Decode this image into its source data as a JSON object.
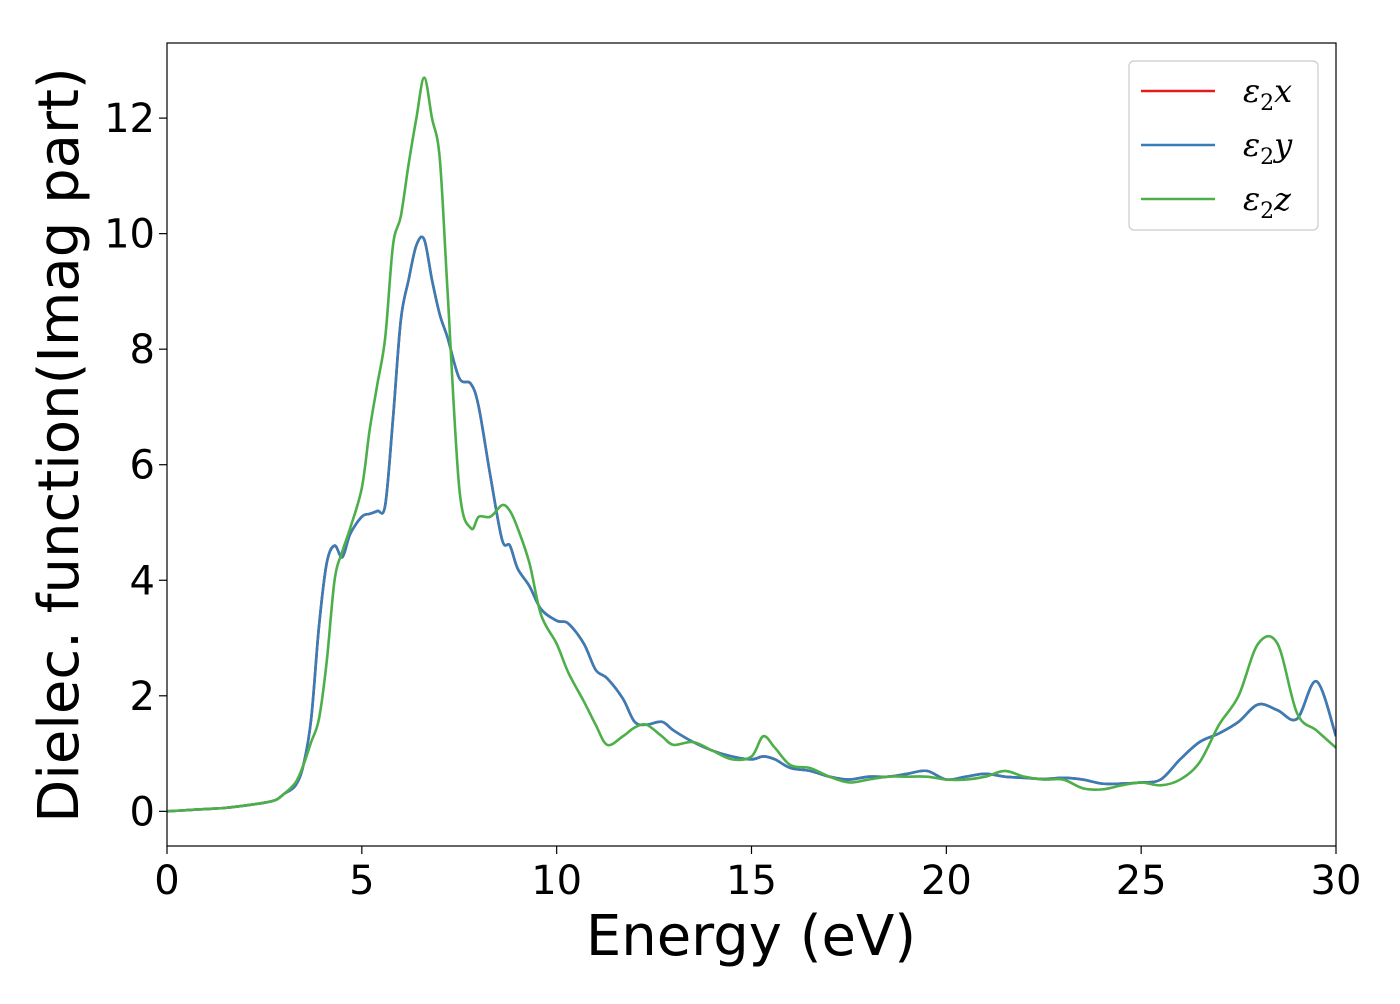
{
  "chart_data": {
    "type": "line",
    "title": "",
    "xlabel": "Energy (eV)",
    "ylabel": "Dielec. function(Imag part)",
    "xlim": [
      0,
      30
    ],
    "ylim": [
      -0.6,
      13.3
    ],
    "xticks": [
      0,
      5,
      10,
      15,
      20,
      25,
      30
    ],
    "yticks": [
      0,
      2,
      4,
      6,
      8,
      10,
      12
    ],
    "grid": false,
    "legend_position": "top-right",
    "legend": [
      {
        "sub": "2",
        "axis": "x",
        "color": "#e41a1c"
      },
      {
        "sub": "2",
        "axis": "y",
        "color": "#377eb8"
      },
      {
        "sub": "2",
        "axis": "z",
        "color": "#4daf4a"
      }
    ],
    "series": [
      {
        "name": "ε2x",
        "color": "#e41a1c",
        "x": [
          0,
          0.5,
          1,
          1.5,
          2,
          2.5,
          2.8,
          3,
          3.3,
          3.5,
          3.7,
          3.9,
          4.1,
          4.3,
          4.5,
          4.7,
          5,
          5.2,
          5.4,
          5.6,
          5.8,
          6,
          6.2,
          6.4,
          6.6,
          6.8,
          7,
          7.2,
          7.5,
          7.8,
          8,
          8.3,
          8.6,
          8.8,
          9,
          9.3,
          9.6,
          10,
          10.3,
          10.7,
          11,
          11.3,
          11.7,
          12,
          12.3,
          12.7,
          13,
          13.5,
          14,
          14.5,
          15,
          15.3,
          15.6,
          16,
          16.5,
          17,
          17.5,
          18,
          18.5,
          19,
          19.5,
          20,
          20.5,
          21,
          21.5,
          22,
          22.5,
          23,
          23.5,
          24,
          24.5,
          25,
          25.5,
          26,
          26.5,
          27,
          27.5,
          28,
          28.5,
          29,
          29.5,
          30
        ],
        "y": [
          0,
          0.02,
          0.04,
          0.06,
          0.1,
          0.15,
          0.2,
          0.3,
          0.45,
          0.8,
          1.6,
          3.2,
          4.3,
          4.6,
          4.4,
          4.8,
          5.1,
          5.15,
          5.2,
          5.3,
          6.8,
          8.5,
          9.2,
          9.8,
          9.9,
          9.2,
          8.6,
          8.2,
          7.5,
          7.4,
          7.0,
          5.8,
          4.7,
          4.6,
          4.2,
          3.9,
          3.5,
          3.3,
          3.25,
          2.9,
          2.45,
          2.3,
          1.95,
          1.55,
          1.5,
          1.55,
          1.4,
          1.2,
          1.05,
          0.95,
          0.9,
          0.95,
          0.9,
          0.75,
          0.7,
          0.6,
          0.55,
          0.6,
          0.6,
          0.65,
          0.7,
          0.55,
          0.6,
          0.65,
          0.6,
          0.58,
          0.56,
          0.58,
          0.55,
          0.48,
          0.48,
          0.5,
          0.55,
          0.9,
          1.2,
          1.35,
          1.55,
          1.85,
          1.75,
          1.6,
          2.25,
          1.3
        ]
      },
      {
        "name": "ε2y",
        "color": "#377eb8",
        "x": [
          0,
          0.5,
          1,
          1.5,
          2,
          2.5,
          2.8,
          3,
          3.3,
          3.5,
          3.7,
          3.9,
          4.1,
          4.3,
          4.5,
          4.7,
          5,
          5.2,
          5.4,
          5.6,
          5.8,
          6,
          6.2,
          6.4,
          6.6,
          6.8,
          7,
          7.2,
          7.5,
          7.8,
          8,
          8.3,
          8.6,
          8.8,
          9,
          9.3,
          9.6,
          10,
          10.3,
          10.7,
          11,
          11.3,
          11.7,
          12,
          12.3,
          12.7,
          13,
          13.5,
          14,
          14.5,
          15,
          15.3,
          15.6,
          16,
          16.5,
          17,
          17.5,
          18,
          18.5,
          19,
          19.5,
          20,
          20.5,
          21,
          21.5,
          22,
          22.5,
          23,
          23.5,
          24,
          24.5,
          25,
          25.5,
          26,
          26.5,
          27,
          27.5,
          28,
          28.5,
          29,
          29.5,
          30
        ],
        "y": [
          0,
          0.02,
          0.04,
          0.06,
          0.1,
          0.15,
          0.2,
          0.3,
          0.45,
          0.8,
          1.6,
          3.2,
          4.3,
          4.6,
          4.4,
          4.8,
          5.1,
          5.15,
          5.2,
          5.3,
          6.8,
          8.5,
          9.2,
          9.8,
          9.9,
          9.2,
          8.6,
          8.2,
          7.5,
          7.4,
          7.0,
          5.8,
          4.7,
          4.6,
          4.2,
          3.9,
          3.5,
          3.3,
          3.25,
          2.9,
          2.45,
          2.3,
          1.95,
          1.55,
          1.5,
          1.55,
          1.4,
          1.2,
          1.05,
          0.95,
          0.9,
          0.95,
          0.9,
          0.75,
          0.7,
          0.6,
          0.55,
          0.6,
          0.6,
          0.65,
          0.7,
          0.55,
          0.6,
          0.65,
          0.6,
          0.58,
          0.56,
          0.58,
          0.55,
          0.48,
          0.48,
          0.5,
          0.55,
          0.9,
          1.2,
          1.35,
          1.55,
          1.85,
          1.75,
          1.6,
          2.25,
          1.3
        ]
      },
      {
        "name": "ε2z",
        "color": "#4daf4a",
        "x": [
          0,
          0.5,
          1,
          1.5,
          2,
          2.5,
          2.8,
          3,
          3.3,
          3.5,
          3.7,
          3.9,
          4.1,
          4.3,
          4.5,
          4.7,
          5,
          5.2,
          5.4,
          5.6,
          5.8,
          6,
          6.2,
          6.4,
          6.6,
          6.8,
          7,
          7.2,
          7.5,
          7.8,
          8,
          8.3,
          8.6,
          8.8,
          9,
          9.3,
          9.6,
          10,
          10.3,
          10.7,
          11,
          11.3,
          11.7,
          12,
          12.3,
          12.7,
          13,
          13.5,
          14,
          14.5,
          15,
          15.3,
          15.6,
          16,
          16.5,
          17,
          17.5,
          18,
          18.5,
          19,
          19.5,
          20,
          20.5,
          21,
          21.5,
          22,
          22.5,
          23,
          23.5,
          24,
          24.5,
          25,
          25.5,
          26,
          26.5,
          27,
          27.5,
          28,
          28.5,
          29,
          29.5,
          30
        ],
        "y": [
          0,
          0.02,
          0.04,
          0.06,
          0.1,
          0.15,
          0.2,
          0.3,
          0.5,
          0.8,
          1.2,
          1.6,
          2.6,
          4.0,
          4.5,
          4.9,
          5.6,
          6.6,
          7.4,
          8.2,
          9.8,
          10.3,
          11.2,
          12.0,
          12.7,
          12.0,
          11.3,
          9.0,
          5.6,
          4.9,
          5.1,
          5.1,
          5.3,
          5.2,
          4.9,
          4.3,
          3.4,
          2.9,
          2.4,
          1.9,
          1.5,
          1.15,
          1.3,
          1.45,
          1.5,
          1.3,
          1.15,
          1.2,
          1.05,
          0.9,
          0.95,
          1.3,
          1.1,
          0.8,
          0.75,
          0.6,
          0.5,
          0.55,
          0.6,
          0.6,
          0.6,
          0.55,
          0.55,
          0.6,
          0.7,
          0.6,
          0.55,
          0.55,
          0.4,
          0.38,
          0.45,
          0.5,
          0.45,
          0.55,
          0.85,
          1.5,
          2.0,
          2.9,
          2.9,
          1.7,
          1.4,
          1.1
        ]
      }
    ]
  }
}
